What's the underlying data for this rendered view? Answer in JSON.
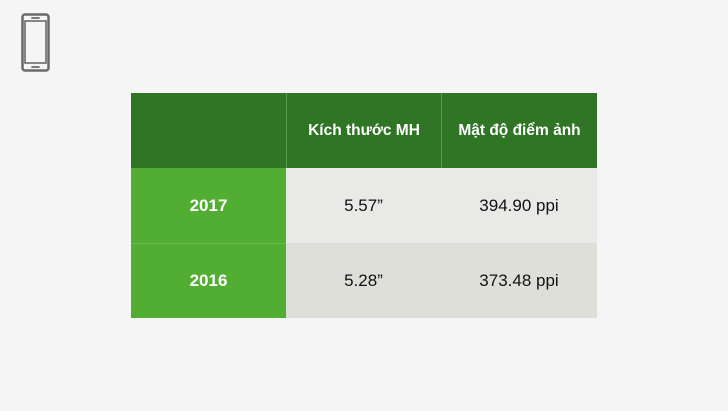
{
  "icon": {
    "name": "smartphone-icon"
  },
  "table": {
    "headers": [
      "",
      "Kích thước MH",
      "Mật độ điểm ảnh"
    ],
    "rows": [
      {
        "year": "2017",
        "screen_size": "5.57”",
        "pixel_density": "394.90 ppi"
      },
      {
        "year": "2016",
        "screen_size": "5.28”",
        "pixel_density": "373.48 ppi"
      }
    ]
  },
  "colors": {
    "header_bg": "#2f7525",
    "year_bg": "#52ae32",
    "row_light": "#e9e9e8",
    "row_dark": "#dfdfda"
  }
}
